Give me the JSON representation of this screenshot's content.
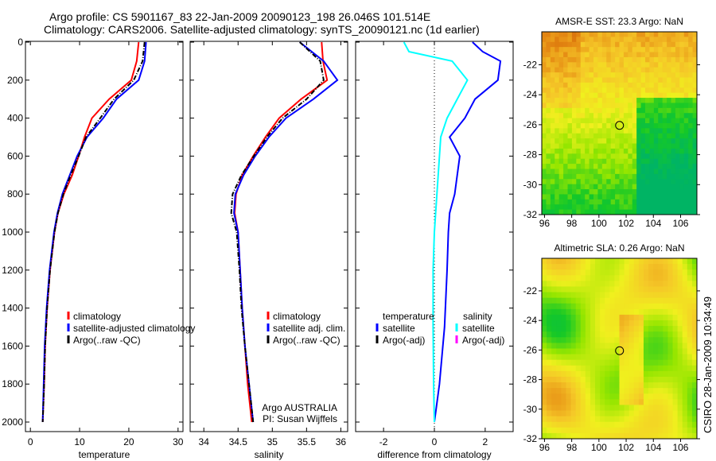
{
  "title_line1": "Argo profile: CS 5901167_83 22-Jan-2009 20090123_198 26.046S 101.514E",
  "title_line2": "Climatology: CARS2006. Satellite-adjusted climatology: synTS_20090121.nc (1d earlier)",
  "side_label": "CSIRO 28-Jan-2009 10:34:49",
  "chart_data": [
    {
      "type": "line",
      "xlabel": "temperature",
      "xlim": [
        -1,
        31
      ],
      "ylim": [
        2050,
        0
      ],
      "xticks": [
        "0",
        "10",
        "20",
        "30"
      ],
      "xtick_values": [
        0,
        10,
        20,
        30
      ],
      "yticks": [
        "0",
        "200",
        "400",
        "600",
        "800",
        "1000",
        "1200",
        "1400",
        "1600",
        "1800",
        "2000"
      ],
      "depth": [
        0,
        100,
        200,
        300,
        400,
        500,
        600,
        700,
        800,
        900,
        1000,
        1200,
        1400,
        1600,
        1800,
        2000
      ],
      "series": [
        {
          "name": "climatology",
          "color": "#ff0000",
          "dash": "",
          "values": [
            22.0,
            21.6,
            20.5,
            16.0,
            12.5,
            11.0,
            9.8,
            8.5,
            6.8,
            5.6,
            4.9,
            4.0,
            3.4,
            3.0,
            2.8,
            2.5
          ]
        },
        {
          "name": "satellite-adjusted climatology",
          "color": "#0000ff",
          "dash": "",
          "values": [
            23.5,
            23.2,
            22.0,
            17.5,
            14.8,
            11.5,
            9.5,
            8.0,
            6.5,
            5.5,
            4.8,
            3.9,
            3.3,
            2.9,
            2.7,
            2.5
          ]
        },
        {
          "name": "Argo(..raw -QC)",
          "color": "#000000",
          "dash": "6,2,1,2",
          "values": [
            23.2,
            22.8,
            21.0,
            17.0,
            14.2,
            11.3,
            9.8,
            8.2,
            6.7,
            5.6,
            4.9,
            4.0,
            3.4,
            3.0,
            2.8,
            2.5
          ]
        }
      ],
      "legend": [
        "climatology",
        "satellite-adjusted climatology",
        "Argo(..raw -QC)"
      ]
    },
    {
      "type": "line",
      "xlabel": "salinity",
      "xlim": [
        33.8,
        36.1
      ],
      "ylim": [
        2050,
        0
      ],
      "xticks": [
        "34",
        "34.5",
        "35",
        "35.5",
        "36"
      ],
      "xtick_values": [
        34,
        34.5,
        35,
        35.5,
        36
      ],
      "depth": [
        0,
        100,
        200,
        300,
        400,
        500,
        600,
        700,
        800,
        900,
        1000,
        1200,
        1400,
        1600,
        1800,
        2000
      ],
      "series": [
        {
          "name": "climatology",
          "color": "#ff0000",
          "dash": "",
          "values": [
            35.72,
            35.74,
            35.8,
            35.42,
            35.1,
            34.9,
            34.72,
            34.56,
            34.47,
            34.45,
            34.5,
            34.53,
            34.56,
            34.6,
            34.64,
            34.7
          ]
        },
        {
          "name": "satellite adj. clim.",
          "color": "#0000ff",
          "dash": "",
          "values": [
            35.4,
            35.75,
            35.95,
            35.6,
            35.2,
            34.95,
            34.75,
            34.58,
            34.46,
            34.44,
            34.5,
            34.53,
            34.56,
            34.6,
            34.66,
            34.72
          ]
        },
        {
          "name": "Argo(..raw -QC)",
          "color": "#000000",
          "dash": "6,2,1,2",
          "values": [
            35.4,
            35.7,
            35.75,
            35.5,
            35.15,
            34.92,
            34.73,
            34.55,
            34.42,
            34.4,
            34.48,
            34.52,
            34.55,
            34.6,
            34.66,
            34.72
          ]
        }
      ],
      "legend": [
        "climatology",
        "satellite adj. clim.",
        "Argo(..raw -QC)"
      ],
      "annotation": [
        "Argo AUSTRALIA",
        "PI: Susan Wijffels"
      ]
    },
    {
      "type": "line",
      "xlabel": "difference from climatology",
      "xlim": [
        -3.1,
        3.1
      ],
      "ylim": [
        2050,
        0
      ],
      "xticks": [
        "-2",
        "0",
        "2"
      ],
      "xtick_values": [
        -2,
        0,
        2
      ],
      "depth": [
        0,
        50,
        100,
        200,
        300,
        400,
        500,
        600,
        700,
        800,
        900,
        1000,
        1200,
        1500,
        1800,
        2000
      ],
      "series": [
        {
          "name": "temperature satellite",
          "color": "#0000ff",
          "dash": "",
          "values": [
            1.5,
            1.9,
            2.6,
            2.5,
            1.6,
            1.2,
            0.6,
            1.0,
            0.9,
            0.8,
            0.6,
            0.55,
            0.5,
            0.4,
            0.2,
            0.0
          ]
        },
        {
          "name": "salinity satellite",
          "color": "#00ffff",
          "dash": "",
          "values": [
            -1.2,
            -1.0,
            0.7,
            1.3,
            0.9,
            0.5,
            0.25,
            0.2,
            0.15,
            0.1,
            0.05,
            0.0,
            -0.05,
            -0.05,
            -0.03,
            0.0
          ]
        }
      ],
      "legend_heads": [
        "temperature",
        "salinity"
      ],
      "legend": [
        "satellite",
        "Argo(-adj)",
        "satellite",
        "Argo(-adj)"
      ],
      "legend_colors": [
        "#0000ff",
        "#000000",
        "#00ffff",
        "#ff00ff"
      ]
    },
    {
      "type": "heatmap",
      "title": "AMSR-E SST: 23.3 Argo: NaN",
      "xticks": [
        "96",
        "98",
        "100",
        "102",
        "104",
        "106"
      ],
      "yticks": [
        "-22",
        "-24",
        "-26",
        "-28",
        "-30",
        "-32"
      ],
      "marker": [
        101.514,
        -26.046
      ]
    },
    {
      "type": "heatmap",
      "title": "Altimetric SLA: 0.26 Argo: NaN",
      "xticks": [
        "96",
        "98",
        "100",
        "102",
        "104",
        "106"
      ],
      "yticks": [
        "-22",
        "-24",
        "-26",
        "-28",
        "-30",
        "-32"
      ],
      "marker": [
        101.514,
        -26.046
      ]
    }
  ]
}
